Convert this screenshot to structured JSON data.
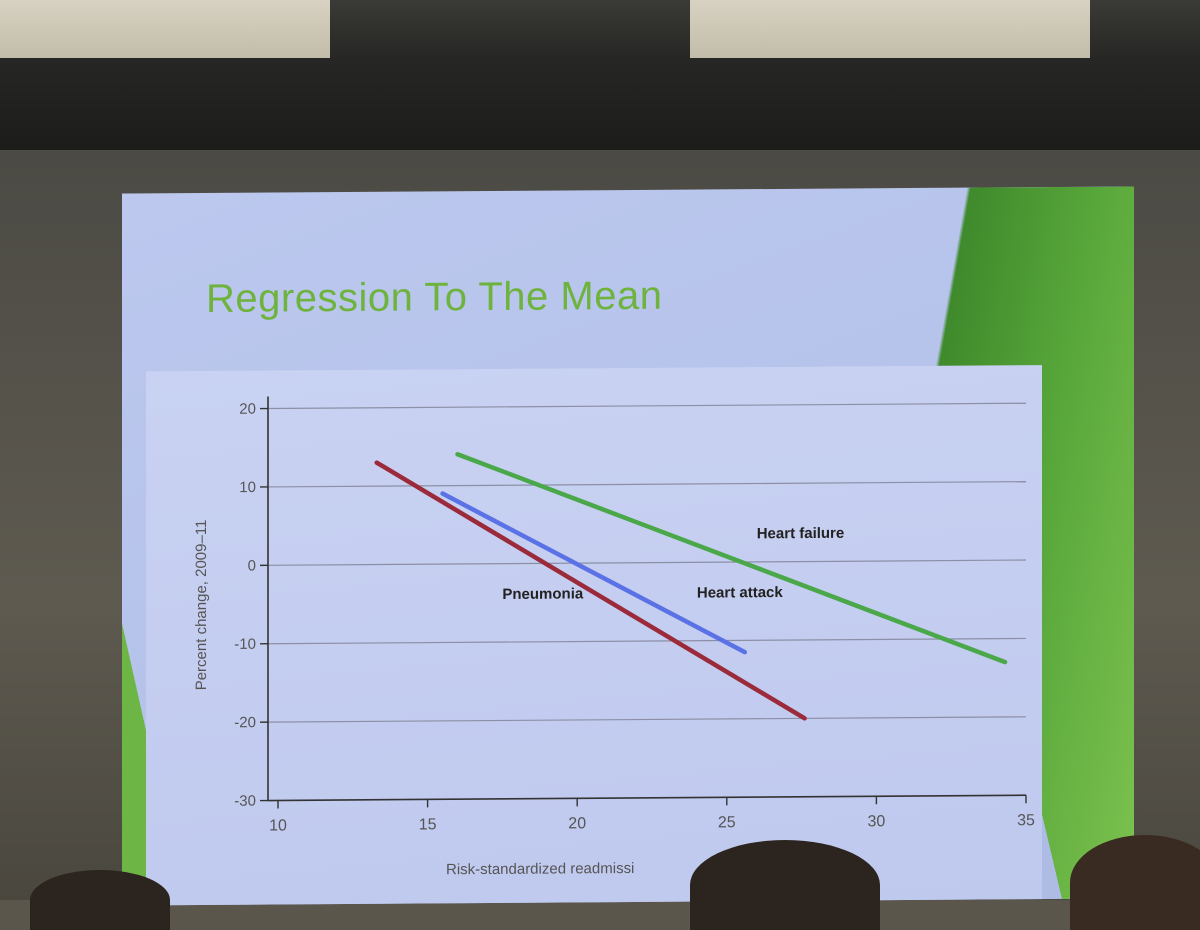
{
  "slide": {
    "title": "Regression To The Mean"
  },
  "chart_data": {
    "type": "line",
    "title": "",
    "xlabel": "Risk-standardized readmissi",
    "ylabel": "Percent change, 2009–11",
    "xlim": [
      10,
      35
    ],
    "ylim": [
      -30,
      20
    ],
    "xticks": [
      10,
      15,
      20,
      25,
      30,
      35
    ],
    "yticks": [
      20,
      10,
      0,
      -10,
      -20,
      -30
    ],
    "grid": true,
    "series": [
      {
        "name": "Heart failure",
        "color": "#4aa84a",
        "x": [
          16,
          34.3
        ],
        "y": [
          14,
          -13
        ]
      },
      {
        "name": "Heart attack",
        "color": "#5a72e6",
        "x": [
          15.5,
          25.6
        ],
        "y": [
          9,
          -11.5
        ]
      },
      {
        "name": "Pneumonia",
        "color": "#9b2a3a",
        "x": [
          13.3,
          27.6
        ],
        "y": [
          13,
          -20
        ]
      }
    ],
    "annotations": [
      {
        "text": "Heart failure",
        "x": 26,
        "y": 3
      },
      {
        "text": "Heart attack",
        "x": 24,
        "y": -4.5
      },
      {
        "text": "Pneumonia",
        "x": 17.5,
        "y": -4.5
      }
    ]
  }
}
